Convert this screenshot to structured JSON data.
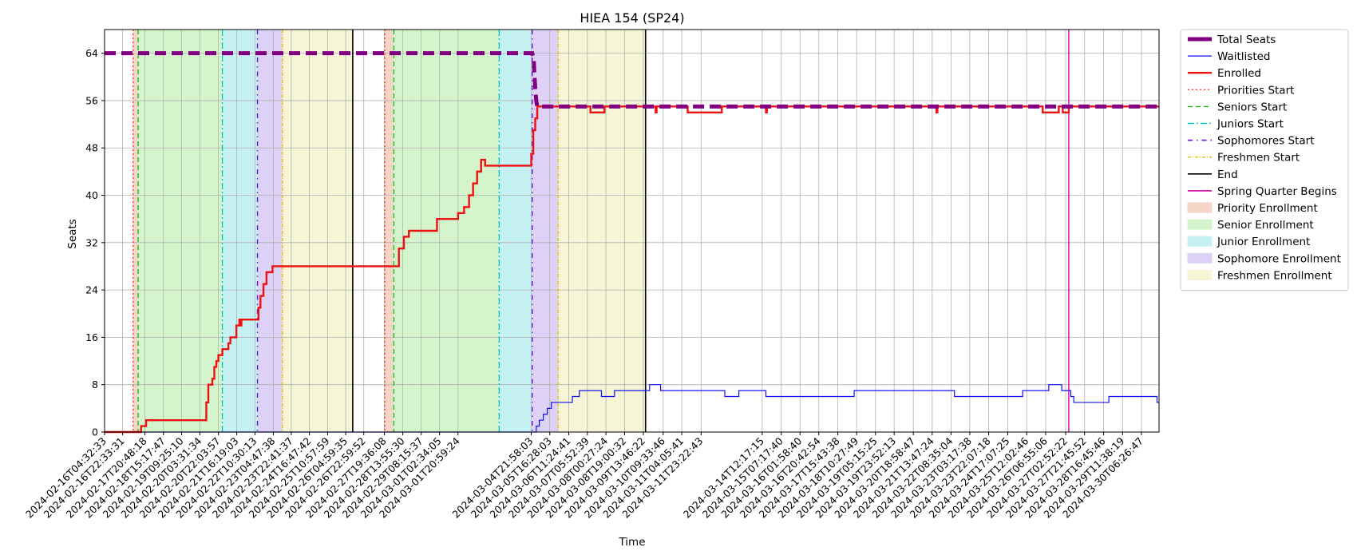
{
  "chart_data": {
    "type": "line",
    "title": "HIEA 154 (SP24)",
    "xlabel": "Time",
    "ylabel": "Seats",
    "ylim": [
      0,
      68
    ],
    "yticks": [
      0,
      8,
      16,
      24,
      32,
      40,
      48,
      56,
      64
    ],
    "xlim": [
      "2024-02-16T04:32:33",
      "2024-03-31T00:00:00"
    ],
    "grid": true,
    "legend_position": "outside-right",
    "xtick_labels": [
      "2024-02-16T04:32:33",
      "2024-02-16T22:33:31",
      "2024-02-17T20:48:18",
      "2024-02-18T15:17:47",
      "2024-02-19T09:25:10",
      "2024-02-20T03:31:34",
      "2024-02-20T22:03:57",
      "2024-02-21T16:19:03",
      "2024-02-22T10:30:13",
      "2024-02-23T04:47:38",
      "2024-02-23T22:41:37",
      "2024-02-24T16:47:42",
      "2024-02-25T10:57:59",
      "2024-02-26T04:59:35",
      "2024-02-26T22:59:52",
      "2024-02-27T19:36:08",
      "2024-02-28T13:55:30",
      "2024-02-29T08:15:37",
      "2024-03-01T02:34:05",
      "2024-03-01T20:59:24",
      "2024-03-04T21:58:03",
      "2024-03-05T16:28:03",
      "2024-03-06T11:24:41",
      "2024-03-07T05:52:39",
      "2024-03-08T00:27:24",
      "2024-03-08T19:00:32",
      "2024-03-09T13:46:22",
      "2024-03-10T09:33:46",
      "2024-03-11T04:05:41",
      "2024-03-11T23:22:43",
      "2024-03-14T12:17:15",
      "2024-03-15T07:17:40",
      "2024-03-16T01:58:40",
      "2024-03-16T20:42:54",
      "2024-03-17T15:43:38",
      "2024-03-18T10:27:49",
      "2024-03-19T05:15:25",
      "2024-03-19T23:52:13",
      "2024-03-20T18:58:47",
      "2024-03-21T13:47:24",
      "2024-03-22T08:35:04",
      "2024-03-23T03:17:38",
      "2024-03-23T22:07:18",
      "2024-03-24T17:07:25",
      "2024-03-25T12:02:46",
      "2024-03-26T06:55:06",
      "2024-03-27T02:52:22",
      "2024-03-27T21:45:52",
      "2024-03-28T16:45:46",
      "2024-03-29T11:38:19",
      "2024-03-30T06:26:47"
    ],
    "periods": [
      {
        "name": "Priority Enrollment",
        "start": "2024-02-17T09:00:00",
        "end": "2024-02-17T14:00:00",
        "color": "#f4d6c8"
      },
      {
        "name": "Senior Enrollment",
        "start": "2024-02-17T14:00:00",
        "end": "2024-02-21T02:00:00",
        "color": "#d4f5cc"
      },
      {
        "name": "Junior Enrollment",
        "start": "2024-02-21T02:00:00",
        "end": "2024-02-22T13:00:00",
        "color": "#c6f1f3"
      },
      {
        "name": "Sophomore Enrollment",
        "start": "2024-02-22T13:00:00",
        "end": "2024-02-23T14:00:00",
        "color": "#ddd2f5"
      },
      {
        "name": "Freshmen Enrollment",
        "start": "2024-02-23T14:00:00",
        "end": "2024-02-26T12:00:00",
        "color": "#f6f6d6"
      },
      {
        "name": "Priority Enrollment",
        "start": "2024-02-27T20:00:00",
        "end": "2024-02-28T05:00:00",
        "color": "#f4d6c8"
      },
      {
        "name": "Senior Enrollment",
        "start": "2024-02-28T05:00:00",
        "end": "2024-03-03T14:00:00",
        "color": "#d4f5cc"
      },
      {
        "name": "Junior Enrollment",
        "start": "2024-03-03T14:00:00",
        "end": "2024-03-04T23:00:00",
        "color": "#c6f1f3"
      },
      {
        "name": "Sophomore Enrollment",
        "start": "2024-03-04T23:00:00",
        "end": "2024-03-06T01:00:00",
        "color": "#ddd2f5"
      },
      {
        "name": "Freshmen Enrollment",
        "start": "2024-03-06T01:00:00",
        "end": "2024-03-09T16:00:00",
        "color": "#f6f6d6"
      }
    ],
    "vlines": [
      {
        "name": "Priorities Start",
        "x": "2024-02-17T09:00:00",
        "color": "#ff3b1f",
        "dash": "2,3"
      },
      {
        "name": "Seniors Start",
        "x": "2024-02-17T14:00:00",
        "color": "#22bb22",
        "dash": "6,4"
      },
      {
        "name": "Juniors Start",
        "x": "2024-02-21T02:00:00",
        "color": "#14c0c8",
        "dash": "8,3,2,3"
      },
      {
        "name": "Sophomores Start",
        "x": "2024-02-22T13:00:00",
        "color": "#6a11d8",
        "dash": "6,5,1.5,5"
      },
      {
        "name": "Freshmen Start",
        "x": "2024-02-23T14:00:00",
        "color": "#e4c800",
        "dash": "4,2,1,2"
      },
      {
        "name": "End",
        "x": "2024-02-26T12:00:00",
        "color": "#000000",
        "dash": ""
      },
      {
        "name": "Priorities Start",
        "x": "2024-02-27T20:00:00",
        "color": "#ff3b1f",
        "dash": "2,3"
      },
      {
        "name": "Seniors Start",
        "x": "2024-02-28T05:00:00",
        "color": "#22bb22",
        "dash": "6,4"
      },
      {
        "name": "Juniors Start",
        "x": "2024-03-03T14:00:00",
        "color": "#14c0c8",
        "dash": "8,3,2,3"
      },
      {
        "name": "Sophomores Start",
        "x": "2024-03-04T23:00:00",
        "color": "#6a11d8",
        "dash": "6,5,1.5,5"
      },
      {
        "name": "Freshmen Start",
        "x": "2024-03-06T01:00:00",
        "color": "#e4c800",
        "dash": "4,2,1,2"
      },
      {
        "name": "End",
        "x": "2024-03-09T16:00:00",
        "color": "#000000",
        "dash": ""
      },
      {
        "name": "Spring Quarter Begins",
        "x": "2024-03-27T06:00:00",
        "color": "#d600a8",
        "dash": ""
      }
    ],
    "series": [
      {
        "name": "Total Seats",
        "color": "#800080",
        "style": "dashed-thick",
        "points": [
          [
            "2024-02-16T04:32:33",
            64
          ],
          [
            "2024-03-04T23:00:00",
            64
          ],
          [
            "2024-03-05T00:30:00",
            63
          ],
          [
            "2024-03-05T01:00:00",
            61
          ],
          [
            "2024-03-05T02:00:00",
            58
          ],
          [
            "2024-03-05T03:00:00",
            56
          ],
          [
            "2024-03-05T04:00:00",
            55
          ],
          [
            "2024-03-31T00:00:00",
            55
          ]
        ]
      },
      {
        "name": "Waitlisted",
        "color": "#1010ee",
        "style": "solid-thin",
        "points": [
          [
            "2024-02-16T04:32:33",
            0
          ],
          [
            "2024-03-05T02:00:00",
            0
          ],
          [
            "2024-03-05T03:00:00",
            1
          ],
          [
            "2024-03-05T06:00:00",
            2
          ],
          [
            "2024-03-05T10:00:00",
            3
          ],
          [
            "2024-03-05T14:00:00",
            4
          ],
          [
            "2024-03-05T18:00:00",
            5
          ],
          [
            "2024-03-06T15:00:00",
            6
          ],
          [
            "2024-03-06T22:00:00",
            7
          ],
          [
            "2024-03-07T20:00:00",
            6
          ],
          [
            "2024-03-08T09:00:00",
            7
          ],
          [
            "2024-03-09T20:00:00",
            8
          ],
          [
            "2024-03-10T07:00:00",
            7
          ],
          [
            "2024-03-12T23:00:00",
            6
          ],
          [
            "2024-03-13T13:00:00",
            7
          ],
          [
            "2024-03-14T16:00:00",
            6
          ],
          [
            "2024-03-18T08:00:00",
            7
          ],
          [
            "2024-03-22T12:00:00",
            6
          ],
          [
            "2024-03-25T08:00:00",
            7
          ],
          [
            "2024-03-26T10:00:00",
            8
          ],
          [
            "2024-03-26T23:00:00",
            7
          ],
          [
            "2024-03-27T08:00:00",
            6
          ],
          [
            "2024-03-27T11:00:00",
            5
          ],
          [
            "2024-03-28T22:00:00",
            6
          ],
          [
            "2024-03-30T22:00:00",
            5
          ],
          [
            "2024-03-31T00:00:00",
            5
          ]
        ]
      },
      {
        "name": "Enrolled",
        "color": "#ee1111",
        "style": "solid-thick",
        "points": [
          [
            "2024-02-16T04:32:33",
            0
          ],
          [
            "2024-02-17T17:00:00",
            0
          ],
          [
            "2024-02-17T17:00:00",
            1
          ],
          [
            "2024-02-17T22:00:00",
            1
          ],
          [
            "2024-02-17T22:00:00",
            2
          ],
          [
            "2024-02-20T10:00:00",
            2
          ],
          [
            "2024-02-20T10:00:00",
            5
          ],
          [
            "2024-02-20T12:00:00",
            5
          ],
          [
            "2024-02-20T12:00:00",
            8
          ],
          [
            "2024-02-20T16:00:00",
            8
          ],
          [
            "2024-02-20T16:00:00",
            9
          ],
          [
            "2024-02-20T18:00:00",
            9
          ],
          [
            "2024-02-20T18:00:00",
            11
          ],
          [
            "2024-02-20T20:00:00",
            11
          ],
          [
            "2024-02-20T20:00:00",
            12
          ],
          [
            "2024-02-20T22:00:00",
            12
          ],
          [
            "2024-02-20T22:00:00",
            13
          ],
          [
            "2024-02-21T02:00:00",
            13
          ],
          [
            "2024-02-21T02:00:00",
            14
          ],
          [
            "2024-02-21T08:00:00",
            14
          ],
          [
            "2024-02-21T08:00:00",
            15
          ],
          [
            "2024-02-21T10:00:00",
            15
          ],
          [
            "2024-02-21T10:00:00",
            16
          ],
          [
            "2024-02-21T16:00:00",
            16
          ],
          [
            "2024-02-21T16:00:00",
            18
          ],
          [
            "2024-02-21T19:00:00",
            18
          ],
          [
            "2024-02-21T19:00:00",
            19
          ],
          [
            "2024-02-21T20:00:00",
            19
          ],
          [
            "2024-02-21T20:00:00",
            18
          ],
          [
            "2024-02-21T21:00:00",
            18
          ],
          [
            "2024-02-21T21:00:00",
            19
          ],
          [
            "2024-02-22T14:00:00",
            19
          ],
          [
            "2024-02-22T14:00:00",
            21
          ],
          [
            "2024-02-22T16:00:00",
            21
          ],
          [
            "2024-02-22T16:00:00",
            23
          ],
          [
            "2024-02-22T19:00:00",
            23
          ],
          [
            "2024-02-22T19:00:00",
            25
          ],
          [
            "2024-02-22T22:00:00",
            25
          ],
          [
            "2024-02-22T22:00:00",
            27
          ],
          [
            "2024-02-23T04:00:00",
            27
          ],
          [
            "2024-02-23T04:00:00",
            28
          ],
          [
            "2024-02-28T10:00:00",
            28
          ],
          [
            "2024-02-28T10:00:00",
            31
          ],
          [
            "2024-02-28T15:00:00",
            31
          ],
          [
            "2024-02-28T15:00:00",
            33
          ],
          [
            "2024-02-28T20:00:00",
            33
          ],
          [
            "2024-02-28T20:00:00",
            34
          ],
          [
            "2024-03-01T00:00:00",
            34
          ],
          [
            "2024-03-01T00:00:00",
            36
          ],
          [
            "2024-03-01T21:00:00",
            36
          ],
          [
            "2024-03-01T21:00:00",
            37
          ],
          [
            "2024-03-02T03:00:00",
            37
          ],
          [
            "2024-03-02T03:00:00",
            38
          ],
          [
            "2024-03-02T08:00:00",
            38
          ],
          [
            "2024-03-02T08:00:00",
            40
          ],
          [
            "2024-03-02T12:00:00",
            40
          ],
          [
            "2024-03-02T12:00:00",
            42
          ],
          [
            "2024-03-02T16:00:00",
            42
          ],
          [
            "2024-03-02T16:00:00",
            44
          ],
          [
            "2024-03-02T20:00:00",
            44
          ],
          [
            "2024-03-02T20:00:00",
            46
          ],
          [
            "2024-03-03T00:00:00",
            46
          ],
          [
            "2024-03-03T00:00:00",
            45
          ],
          [
            "2024-03-04T22:00:00",
            45
          ],
          [
            "2024-03-04T22:00:00",
            47
          ],
          [
            "2024-03-05T00:00:00",
            47
          ],
          [
            "2024-03-05T00:00:00",
            51
          ],
          [
            "2024-03-05T02:00:00",
            51
          ],
          [
            "2024-03-05T02:00:00",
            53
          ],
          [
            "2024-03-05T04:00:00",
            53
          ],
          [
            "2024-03-05T04:00:00",
            55
          ],
          [
            "2024-03-07T09:00:00",
            55
          ],
          [
            "2024-03-07T09:00:00",
            54
          ],
          [
            "2024-03-07T23:00:00",
            54
          ],
          [
            "2024-03-07T23:00:00",
            55
          ],
          [
            "2024-03-10T02:00:00",
            55
          ],
          [
            "2024-03-10T02:00:00",
            54
          ],
          [
            "2024-03-10T03:00:00",
            54
          ],
          [
            "2024-03-10T03:00:00",
            55
          ],
          [
            "2024-03-11T10:00:00",
            55
          ],
          [
            "2024-03-11T10:00:00",
            54
          ],
          [
            "2024-03-12T20:00:00",
            54
          ],
          [
            "2024-03-12T20:00:00",
            55
          ],
          [
            "2024-03-14T16:00:00",
            55
          ],
          [
            "2024-03-14T16:00:00",
            54
          ],
          [
            "2024-03-14T17:00:00",
            54
          ],
          [
            "2024-03-14T17:00:00",
            55
          ],
          [
            "2024-03-21T18:00:00",
            55
          ],
          [
            "2024-03-21T18:00:00",
            54
          ],
          [
            "2024-03-21T19:00:00",
            54
          ],
          [
            "2024-03-21T19:00:00",
            55
          ],
          [
            "2024-03-26T04:00:00",
            55
          ],
          [
            "2024-03-26T04:00:00",
            54
          ],
          [
            "2024-03-26T20:00:00",
            54
          ],
          [
            "2024-03-26T20:00:00",
            55
          ],
          [
            "2024-03-27T00:00:00",
            55
          ],
          [
            "2024-03-27T00:00:00",
            54
          ],
          [
            "2024-03-27T06:00:00",
            54
          ],
          [
            "2024-03-27T06:00:00",
            55
          ],
          [
            "2024-03-31T00:00:00",
            55
          ]
        ]
      }
    ],
    "legend": [
      {
        "label": "Total Seats",
        "kind": "line",
        "color": "#800080",
        "style": "dashed-thick"
      },
      {
        "label": "Waitlisted",
        "kind": "line",
        "color": "#1010ee",
        "style": "solid-thin"
      },
      {
        "label": "Enrolled",
        "kind": "line",
        "color": "#ee1111",
        "style": "solid-thick"
      },
      {
        "label": "Priorities Start",
        "kind": "line",
        "color": "#ff3b1f",
        "style": "dotted"
      },
      {
        "label": "Seniors Start",
        "kind": "line",
        "color": "#22bb22",
        "style": "dashed"
      },
      {
        "label": "Juniors Start",
        "kind": "line",
        "color": "#14c0c8",
        "style": "dashdot"
      },
      {
        "label": "Sophomores Start",
        "kind": "line",
        "color": "#6a11d8",
        "style": "dashdotsparse"
      },
      {
        "label": "Freshmen Start",
        "kind": "line",
        "color": "#e4c800",
        "style": "dashdotdense"
      },
      {
        "label": "End",
        "kind": "line",
        "color": "#000000",
        "style": "solid"
      },
      {
        "label": "Spring Quarter Begins",
        "kind": "line",
        "color": "#d600a8",
        "style": "solid"
      },
      {
        "label": "Priority Enrollment",
        "kind": "patch",
        "color": "#f4d6c8"
      },
      {
        "label": "Senior Enrollment",
        "kind": "patch",
        "color": "#d4f5cc"
      },
      {
        "label": "Junior Enrollment",
        "kind": "patch",
        "color": "#c6f1f3"
      },
      {
        "label": "Sophomore Enrollment",
        "kind": "patch",
        "color": "#ddd2f5"
      },
      {
        "label": "Freshmen Enrollment",
        "kind": "patch",
        "color": "#f6f6d6"
      }
    ]
  }
}
